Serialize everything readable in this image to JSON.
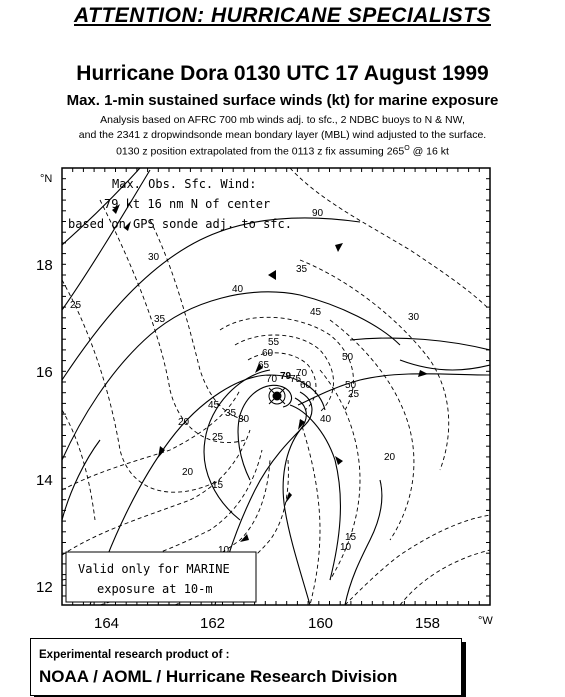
{
  "header": {
    "attention": "ATTENTION: HURRICANE SPECIALISTS",
    "title": "Hurricane Dora 0130 UTC 17 August 1999",
    "subtitle": "Max. 1-min sustained surface winds (kt) for marine exposure",
    "note_line1": "Analysis based on AFRC 700 mb winds adj. to sfc., 2 NDBC buoys to N & NW,",
    "note_line2": "and the 2341 z dropwindsonde mean bondary layer (MBL) wind adjusted to the surface.",
    "note_line3_pre": "0130 z position extrapolated from the 0113 z fix assuming 265",
    "note_line3_sup": "O",
    "note_line3_post": " @ 16 kt"
  },
  "map": {
    "lat_unit": "°N",
    "lon_unit": "°W",
    "lat_ticks": [
      "18",
      "16",
      "14",
      "12"
    ],
    "lon_ticks": [
      "164",
      "162",
      "160",
      "158"
    ],
    "max_obs_line1": "Max. Obs. Sfc. Wind:",
    "max_obs_line2": "79 kt  16 nm N of center",
    "max_obs_line3": "based on GPS sonde adj. to sfc.",
    "valid_line1": "Valid only for MARINE",
    "valid_line2": "exposure at 10-m",
    "center_value": "79",
    "contour_labels": [
      "90",
      "30",
      "25",
      "35",
      "40",
      "35",
      "45",
      "50",
      "55",
      "60",
      "65",
      "70",
      "75",
      "70",
      "60",
      "50",
      "40",
      "45",
      "35",
      "30",
      "25",
      "20",
      "20",
      "15",
      "10",
      "5",
      "15",
      "10",
      "30",
      "25",
      "20"
    ]
  },
  "footer": {
    "line1": "Experimental research product of :",
    "line2": "NOAA / AOML / Hurricane Research Division"
  }
}
